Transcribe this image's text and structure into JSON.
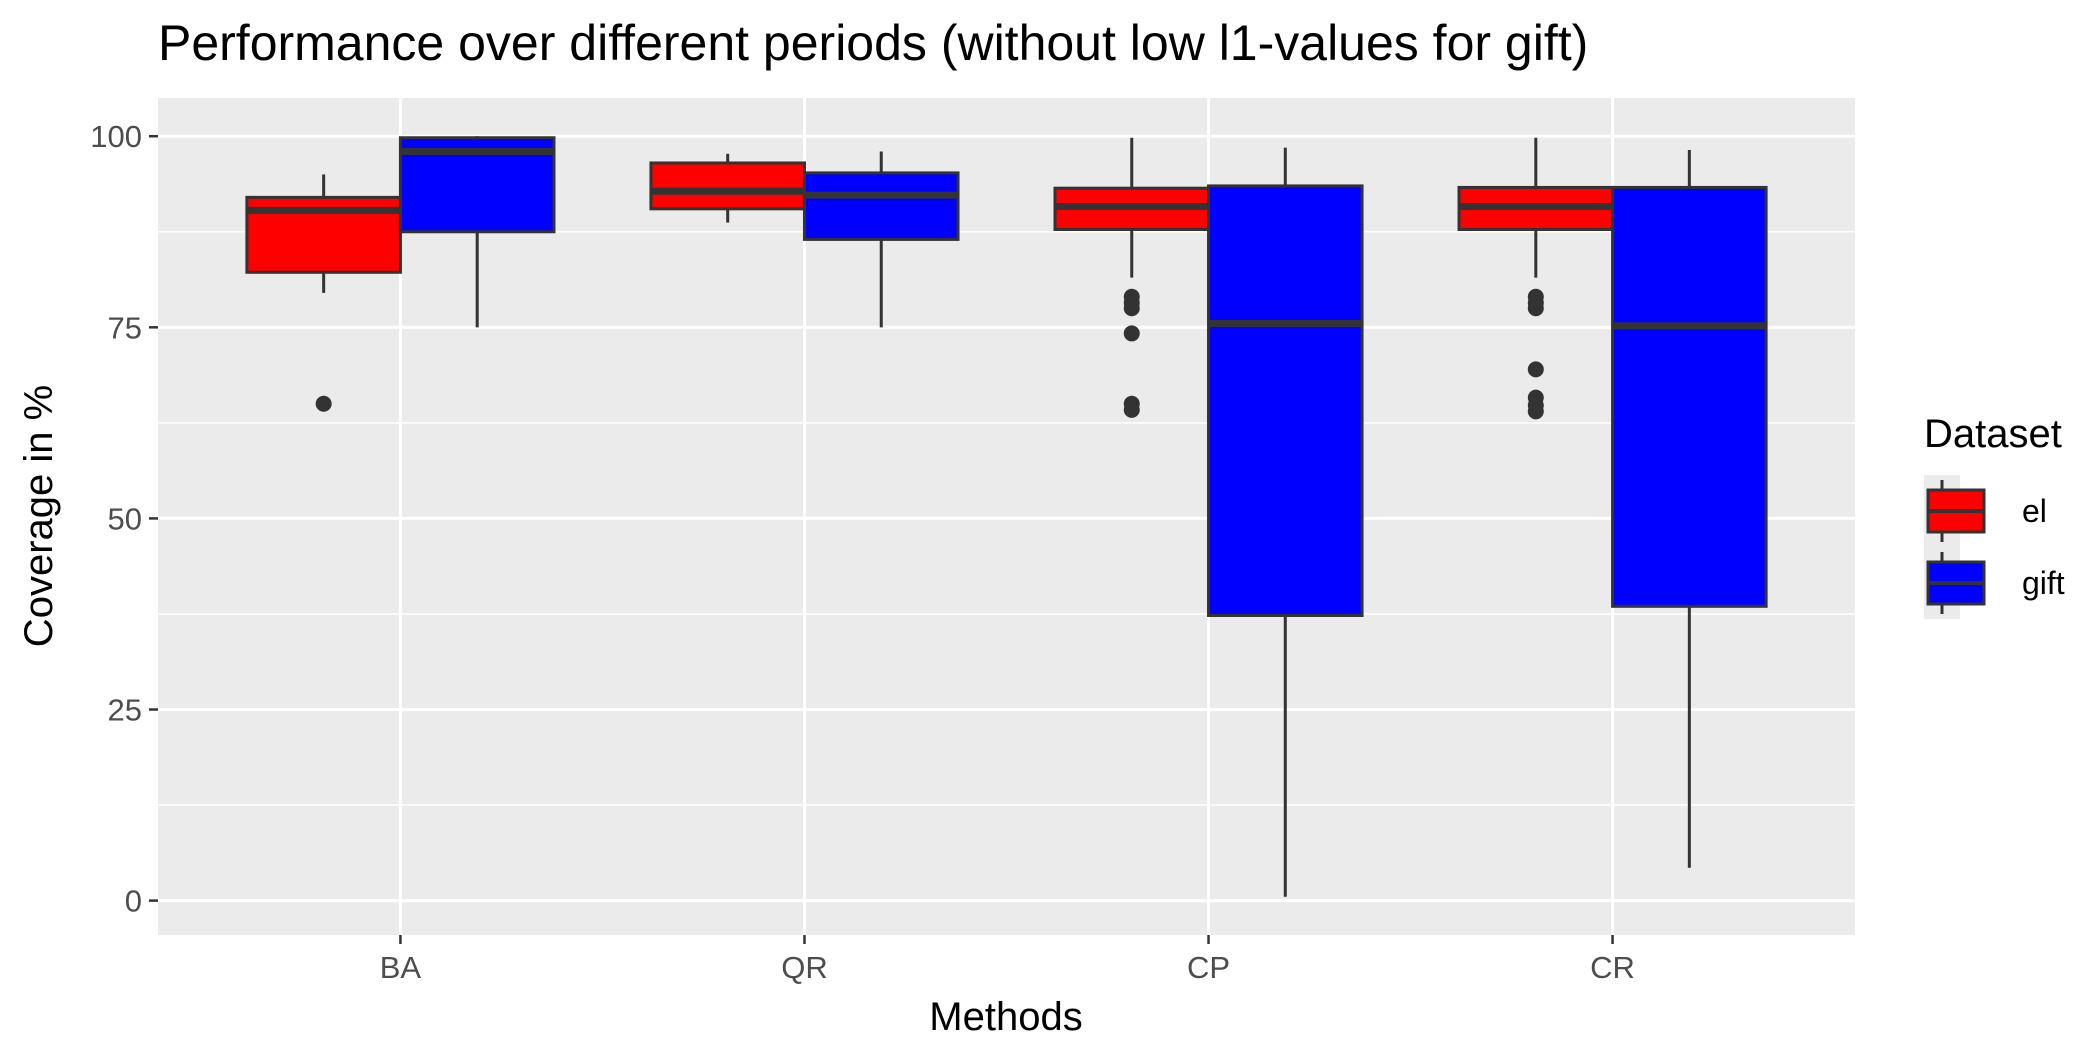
{
  "chart_data": {
    "type": "boxplot",
    "title": "Performance over different periods (without low l1-values for gift)",
    "xlabel": "Methods",
    "ylabel": "Coverage in %",
    "categories": [
      "BA",
      "QR",
      "CP",
      "CR"
    ],
    "ylim": [
      -4.5,
      105
    ],
    "yticks": [
      0,
      25,
      50,
      75,
      100
    ],
    "grid": true,
    "legend": {
      "title": "Dataset",
      "placement": "right"
    },
    "series": [
      {
        "name": "el",
        "color": "#ff0000",
        "boxes": [
          {
            "category": "BA",
            "lower_whisker": 79.5,
            "q1": 82.2,
            "median": 90.3,
            "q3": 92.0,
            "upper_whisker": 95.0,
            "outliers": [
              65.0
            ]
          },
          {
            "category": "QR",
            "lower_whisker": 88.7,
            "q1": 90.5,
            "median": 92.8,
            "q3": 96.5,
            "upper_whisker": 97.7,
            "outliers": []
          },
          {
            "category": "CP",
            "lower_whisker": 81.5,
            "q1": 87.8,
            "median": 90.8,
            "q3": 93.2,
            "upper_whisker": 99.8,
            "outliers": [
              79.0,
              78.2,
              77.5,
              74.2,
              65.0,
              64.2
            ]
          },
          {
            "category": "CR",
            "lower_whisker": 81.5,
            "q1": 87.8,
            "median": 90.8,
            "q3": 93.3,
            "upper_whisker": 99.8,
            "outliers": [
              79.0,
              78.2,
              77.5,
              69.5,
              65.8,
              64.8,
              64.0
            ]
          }
        ]
      },
      {
        "name": "gift",
        "color": "#0000ff",
        "boxes": [
          {
            "category": "BA",
            "lower_whisker": 75.0,
            "q1": 87.5,
            "median": 98.0,
            "q3": 99.8,
            "upper_whisker": 100.0,
            "outliers": []
          },
          {
            "category": "QR",
            "lower_whisker": 75.0,
            "q1": 86.5,
            "median": 92.3,
            "q3": 95.2,
            "upper_whisker": 98.0,
            "outliers": []
          },
          {
            "category": "CP",
            "lower_whisker": 0.5,
            "q1": 37.3,
            "median": 75.5,
            "q3": 93.5,
            "upper_whisker": 98.5,
            "outliers": []
          },
          {
            "category": "CR",
            "lower_whisker": 4.3,
            "q1": 38.5,
            "median": 75.2,
            "q3": 93.3,
            "upper_whisker": 98.2,
            "outliers": []
          }
        ]
      }
    ]
  },
  "colors": {
    "panel_bg": "#ebebeb",
    "grid": "#ffffff",
    "box_outline": "#333333",
    "tick_text": "#4d4d4d"
  }
}
